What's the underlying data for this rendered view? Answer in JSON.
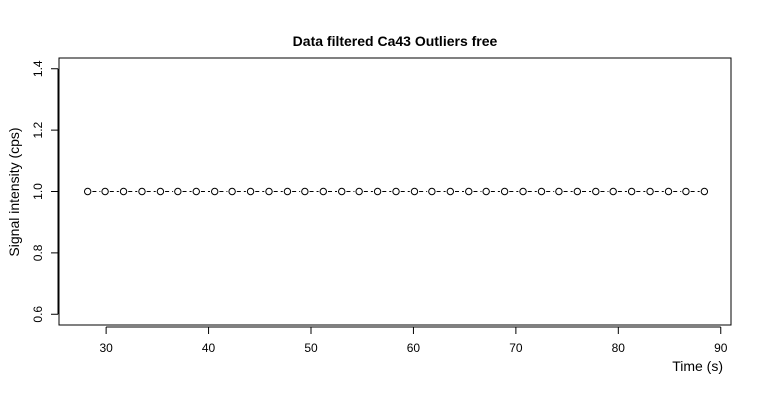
{
  "chart_data": {
    "type": "line",
    "title": "Data filtered Ca43 Outliers free",
    "xlabel": "Time (s)",
    "ylabel": "Signal intensity (cps)",
    "xlim": [
      25.4,
      91.0
    ],
    "ylim": [
      0.565,
      1.435
    ],
    "x_ticks": [
      30,
      40,
      50,
      60,
      70,
      80,
      90
    ],
    "y_ticks": [
      0.6,
      0.8,
      1.0,
      1.2,
      1.4
    ],
    "grid": false,
    "series": [
      {
        "marker": "open-circle",
        "line": "dashed",
        "color": "#000000",
        "x": [
          28.2,
          29.9,
          31.7,
          33.5,
          35.3,
          37.0,
          38.8,
          40.6,
          42.3,
          44.1,
          45.9,
          47.7,
          49.4,
          51.2,
          53.0,
          54.7,
          56.5,
          58.3,
          60.1,
          61.8,
          63.6,
          65.4,
          67.1,
          68.9,
          70.7,
          72.5,
          74.2,
          76.0,
          77.8,
          79.5,
          81.3,
          83.1,
          84.9,
          86.6,
          88.4
        ],
        "y": [
          1.0,
          1.0,
          1.0,
          1.0,
          1.0,
          1.0,
          1.0,
          1.0,
          1.0,
          1.0,
          1.0,
          1.0,
          1.0,
          1.0,
          1.0,
          1.0,
          1.0,
          1.0,
          1.0,
          1.0,
          1.0,
          1.0,
          1.0,
          1.0,
          1.0,
          1.0,
          1.0,
          1.0,
          1.0,
          1.0,
          1.0,
          1.0,
          1.0,
          1.0,
          1.0
        ]
      }
    ]
  }
}
